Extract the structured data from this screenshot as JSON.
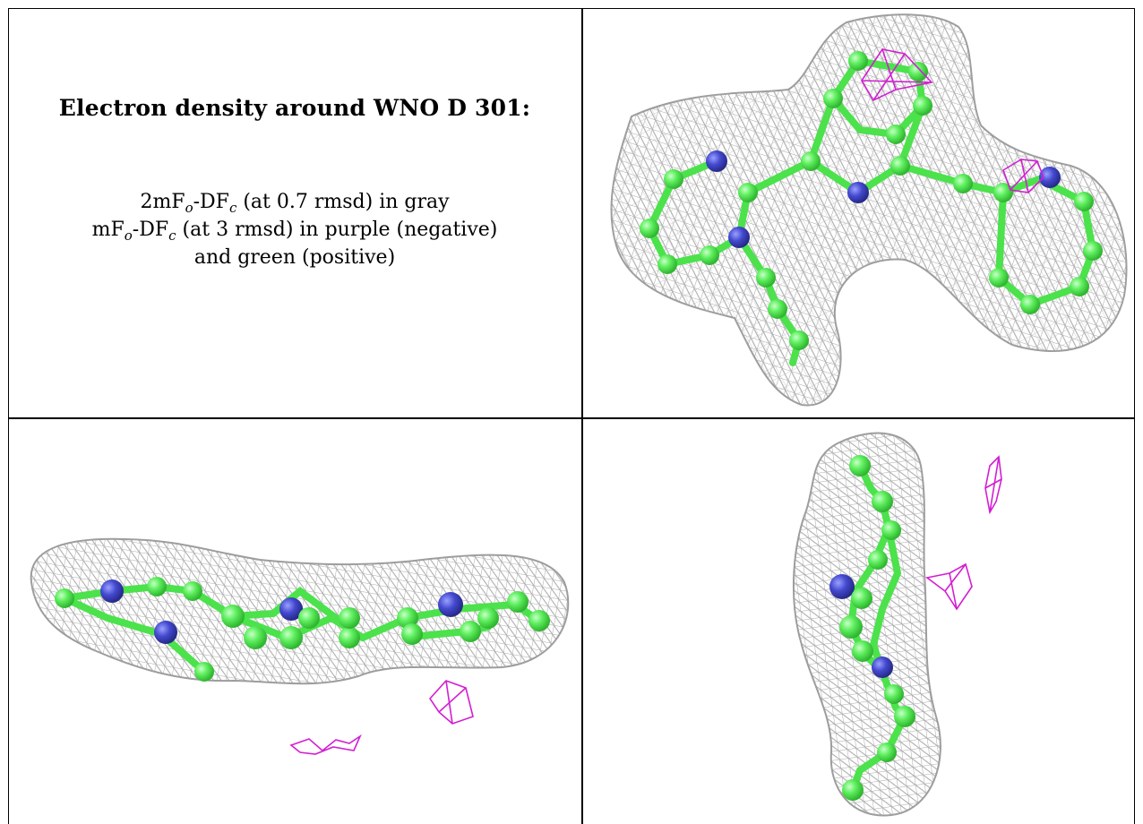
{
  "caption": {
    "title": "Electron density around WNO D 301:",
    "line1": {
      "prefix": "2mF",
      "sub1": "o",
      "mid": "-DF",
      "sub2": "c",
      "suffix": " (at 0.7 rmsd) in gray"
    },
    "line2": {
      "prefix": "mF",
      "sub1": "o",
      "mid": "-DF",
      "sub2": "c",
      "suffix": " (at 3 rmsd) in purple (negative)"
    },
    "line3": "and green (positive)"
  },
  "colors": {
    "mesh_2fofc": "#a6a6a6",
    "mesh_negative": "#d21fd2",
    "carbon_atom": "#56ec56",
    "nitrogen_atom": "#3f44cc",
    "border": "#000000"
  },
  "panels": [
    {
      "id": "view-top",
      "type": "density-render"
    },
    {
      "id": "view-side",
      "type": "density-render"
    },
    {
      "id": "view-end",
      "type": "density-render"
    }
  ]
}
